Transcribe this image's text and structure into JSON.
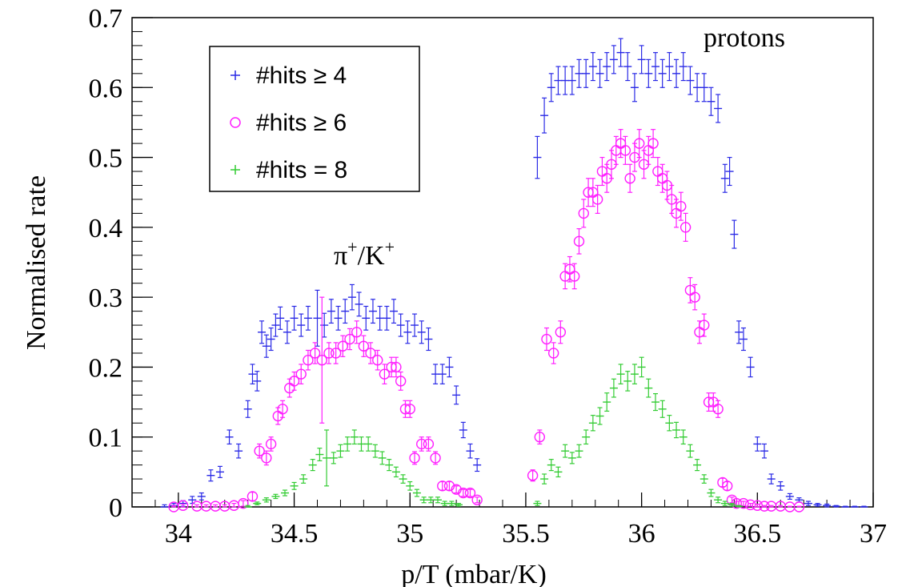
{
  "chart_data": {
    "type": "scatter",
    "xlabel": "p/T (mbar/K)",
    "ylabel": "Normalised rate",
    "xlim": [
      33.8,
      37.0
    ],
    "ylim": [
      0,
      0.7
    ],
    "xticks": [
      34,
      34.5,
      35,
      35.5,
      36,
      36.5,
      37
    ],
    "xtick_labels": [
      "34",
      "34.5",
      "35",
      "35.5",
      "36",
      "36.5",
      "37"
    ],
    "yticks": [
      0,
      0.1,
      0.2,
      0.3,
      0.4,
      0.5,
      0.6,
      0.7
    ],
    "ytick_labels": [
      "0",
      "0.1",
      "0.2",
      "0.3",
      "0.4",
      "0.5",
      "0.6",
      "0.7"
    ],
    "grid": false,
    "legend_position": "top-left",
    "annotations": [
      {
        "text": "π",
        "sup1": "+",
        "mid": "/K",
        "sup2": "+",
        "x": 34.72,
        "y": 0.36
      },
      {
        "text": "protons",
        "x": 36.28,
        "y": 0.665
      }
    ],
    "series": [
      {
        "name": "#hits ≥ 4",
        "marker": "plus",
        "color": "#2a2ae6",
        "x": [
          33.94,
          33.98,
          34.02,
          34.06,
          34.1,
          34.14,
          34.18,
          34.22,
          34.26,
          34.3,
          34.32,
          34.34,
          34.36,
          34.38,
          34.4,
          34.42,
          34.44,
          34.47,
          34.5,
          34.53,
          34.56,
          34.6,
          34.63,
          34.66,
          34.69,
          34.72,
          34.75,
          34.78,
          34.81,
          34.84,
          34.87,
          34.9,
          34.93,
          34.96,
          34.99,
          35.02,
          35.05,
          35.08,
          35.11,
          35.14,
          35.17,
          35.2,
          35.23,
          35.26,
          35.29,
          35.55,
          35.58,
          35.61,
          35.64,
          35.67,
          35.7,
          35.73,
          35.76,
          35.79,
          35.82,
          35.85,
          35.88,
          35.91,
          35.94,
          35.97,
          36.0,
          36.03,
          36.06,
          36.09,
          36.12,
          36.15,
          36.18,
          36.21,
          36.24,
          36.27,
          36.3,
          36.33,
          36.36,
          36.38,
          36.4,
          36.42,
          36.44,
          36.47,
          36.5,
          36.53,
          36.56,
          36.6,
          36.64,
          36.68,
          36.72,
          36.76,
          36.8,
          36.84,
          36.88,
          36.92,
          36.96
        ],
        "y": [
          0.0,
          0.002,
          0.005,
          0.01,
          0.015,
          0.045,
          0.05,
          0.1,
          0.08,
          0.14,
          0.19,
          0.18,
          0.25,
          0.23,
          0.24,
          0.26,
          0.27,
          0.25,
          0.27,
          0.26,
          0.27,
          0.27,
          0.26,
          0.28,
          0.27,
          0.28,
          0.3,
          0.29,
          0.27,
          0.28,
          0.27,
          0.27,
          0.28,
          0.26,
          0.25,
          0.26,
          0.25,
          0.24,
          0.19,
          0.19,
          0.2,
          0.16,
          0.11,
          0.08,
          0.06,
          0.5,
          0.56,
          0.6,
          0.61,
          0.61,
          0.61,
          0.62,
          0.62,
          0.63,
          0.62,
          0.63,
          0.64,
          0.65,
          0.63,
          0.6,
          0.64,
          0.62,
          0.63,
          0.62,
          0.63,
          0.62,
          0.63,
          0.61,
          0.6,
          0.6,
          0.58,
          0.57,
          0.47,
          0.48,
          0.39,
          0.25,
          0.24,
          0.2,
          0.09,
          0.08,
          0.04,
          0.03,
          0.015,
          0.01,
          0.005,
          0.003,
          0.002,
          0.001,
          0.0,
          0.0,
          0.0
        ],
        "yerr": [
          0.003,
          0.003,
          0.004,
          0.005,
          0.005,
          0.008,
          0.008,
          0.01,
          0.01,
          0.012,
          0.014,
          0.014,
          0.016,
          0.016,
          0.016,
          0.016,
          0.016,
          0.016,
          0.017,
          0.016,
          0.017,
          0.04,
          0.017,
          0.017,
          0.017,
          0.017,
          0.018,
          0.017,
          0.017,
          0.017,
          0.017,
          0.017,
          0.017,
          0.016,
          0.016,
          0.016,
          0.016,
          0.016,
          0.014,
          0.014,
          0.014,
          0.013,
          0.011,
          0.01,
          0.009,
          0.03,
          0.025,
          0.02,
          0.02,
          0.02,
          0.02,
          0.02,
          0.02,
          0.02,
          0.02,
          0.02,
          0.02,
          0.02,
          0.02,
          0.02,
          0.02,
          0.02,
          0.02,
          0.02,
          0.02,
          0.02,
          0.02,
          0.02,
          0.02,
          0.02,
          0.02,
          0.02,
          0.02,
          0.02,
          0.02,
          0.016,
          0.016,
          0.014,
          0.01,
          0.01,
          0.007,
          0.006,
          0.004,
          0.003,
          0.003,
          0.002,
          0.002,
          0.001,
          0.001,
          0.001,
          0.001
        ]
      },
      {
        "name": "#hits ≥ 6",
        "marker": "circle",
        "color": "#ff1fff",
        "x": [
          33.98,
          34.02,
          34.08,
          34.12,
          34.16,
          34.2,
          34.24,
          34.28,
          34.32,
          34.35,
          34.38,
          34.4,
          34.43,
          34.45,
          34.48,
          34.5,
          34.53,
          34.56,
          34.59,
          34.62,
          34.65,
          34.68,
          34.71,
          34.74,
          34.77,
          34.8,
          34.83,
          34.86,
          34.89,
          34.92,
          34.94,
          34.96,
          34.98,
          35.0,
          35.02,
          35.05,
          35.08,
          35.11,
          35.14,
          35.17,
          35.2,
          35.23,
          35.26,
          35.29,
          35.53,
          35.56,
          35.59,
          35.62,
          35.65,
          35.67,
          35.69,
          35.71,
          35.73,
          35.75,
          35.77,
          35.79,
          35.81,
          35.83,
          35.85,
          35.87,
          35.89,
          35.91,
          35.93,
          35.95,
          35.97,
          35.99,
          36.01,
          36.03,
          36.05,
          36.07,
          36.09,
          36.11,
          36.13,
          36.15,
          36.17,
          36.19,
          36.21,
          36.23,
          36.25,
          36.27,
          36.29,
          36.31,
          36.33,
          36.35,
          36.37,
          36.39,
          36.41,
          36.44,
          36.47,
          36.5,
          36.53,
          36.56,
          36.6,
          36.64,
          36.68
        ],
        "y": [
          0.0,
          0.002,
          0.001,
          0.001,
          0.001,
          0.001,
          0.002,
          0.005,
          0.015,
          0.08,
          0.07,
          0.09,
          0.13,
          0.14,
          0.17,
          0.18,
          0.19,
          0.21,
          0.22,
          0.21,
          0.22,
          0.22,
          0.23,
          0.24,
          0.25,
          0.23,
          0.22,
          0.21,
          0.19,
          0.2,
          0.2,
          0.18,
          0.14,
          0.14,
          0.07,
          0.09,
          0.09,
          0.07,
          0.03,
          0.03,
          0.025,
          0.02,
          0.02,
          0.01,
          0.045,
          0.1,
          0.24,
          0.22,
          0.25,
          0.33,
          0.34,
          0.33,
          0.38,
          0.42,
          0.45,
          0.45,
          0.44,
          0.48,
          0.47,
          0.49,
          0.51,
          0.52,
          0.51,
          0.47,
          0.5,
          0.52,
          0.49,
          0.51,
          0.52,
          0.48,
          0.47,
          0.46,
          0.44,
          0.42,
          0.43,
          0.4,
          0.31,
          0.3,
          0.25,
          0.26,
          0.15,
          0.15,
          0.14,
          0.035,
          0.03,
          0.01,
          0.005,
          0.005,
          0.003,
          0.002,
          0.001,
          0.001,
          0.001,
          0.0,
          0.0
        ],
        "yerr": [
          0.002,
          0.002,
          0.002,
          0.002,
          0.002,
          0.002,
          0.003,
          0.004,
          0.006,
          0.01,
          0.01,
          0.01,
          0.012,
          0.012,
          0.013,
          0.013,
          0.014,
          0.014,
          0.015,
          0.09,
          0.015,
          0.015,
          0.015,
          0.015,
          0.016,
          0.015,
          0.015,
          0.014,
          0.014,
          0.014,
          0.014,
          0.013,
          0.012,
          0.012,
          0.009,
          0.01,
          0.01,
          0.009,
          0.006,
          0.006,
          0.005,
          0.005,
          0.005,
          0.004,
          0.008,
          0.01,
          0.016,
          0.015,
          0.016,
          0.018,
          0.018,
          0.018,
          0.018,
          0.02,
          0.02,
          0.02,
          0.02,
          0.02,
          0.02,
          0.02,
          0.02,
          0.02,
          0.02,
          0.02,
          0.02,
          0.02,
          0.02,
          0.02,
          0.02,
          0.02,
          0.02,
          0.02,
          0.02,
          0.02,
          0.02,
          0.02,
          0.018,
          0.018,
          0.016,
          0.016,
          0.013,
          0.013,
          0.012,
          0.006,
          0.006,
          0.004,
          0.003,
          0.003,
          0.002,
          0.002,
          0.001,
          0.001,
          0.001,
          0.001,
          0.001
        ]
      },
      {
        "name": "#hits = 8",
        "marker": "plus",
        "color": "#33cc33",
        "x": [
          34.3,
          34.34,
          34.38,
          34.42,
          34.46,
          34.5,
          34.54,
          34.58,
          34.61,
          34.64,
          34.67,
          34.7,
          34.73,
          34.76,
          34.79,
          34.82,
          34.85,
          34.88,
          34.91,
          34.94,
          34.97,
          35.0,
          35.03,
          35.06,
          35.09,
          35.12,
          35.15,
          35.18,
          35.21,
          35.55,
          35.58,
          35.61,
          35.64,
          35.67,
          35.7,
          35.73,
          35.76,
          35.79,
          35.82,
          35.85,
          35.88,
          35.91,
          35.94,
          35.97,
          36.0,
          36.03,
          36.06,
          36.09,
          36.12,
          36.15,
          36.18,
          36.21,
          36.24,
          36.27,
          36.3,
          36.33,
          36.36,
          36.39,
          36.42
        ],
        "y": [
          0.0,
          0.005,
          0.01,
          0.015,
          0.02,
          0.03,
          0.04,
          0.06,
          0.075,
          0.07,
          0.07,
          0.08,
          0.09,
          0.1,
          0.09,
          0.09,
          0.08,
          0.07,
          0.06,
          0.05,
          0.04,
          0.03,
          0.02,
          0.01,
          0.01,
          0.01,
          0.005,
          0.005,
          0.003,
          0.005,
          0.04,
          0.06,
          0.05,
          0.08,
          0.07,
          0.08,
          0.1,
          0.12,
          0.13,
          0.15,
          0.17,
          0.19,
          0.18,
          0.19,
          0.2,
          0.17,
          0.15,
          0.14,
          0.12,
          0.11,
          0.1,
          0.08,
          0.06,
          0.04,
          0.02,
          0.01,
          0.005,
          0.003,
          0.001
        ],
        "yerr": [
          0.002,
          0.002,
          0.003,
          0.003,
          0.004,
          0.005,
          0.006,
          0.008,
          0.009,
          0.04,
          0.008,
          0.009,
          0.01,
          0.01,
          0.01,
          0.01,
          0.009,
          0.009,
          0.008,
          0.007,
          0.006,
          0.006,
          0.005,
          0.004,
          0.004,
          0.004,
          0.003,
          0.003,
          0.002,
          0.003,
          0.007,
          0.008,
          0.007,
          0.009,
          0.008,
          0.009,
          0.01,
          0.011,
          0.012,
          0.013,
          0.013,
          0.014,
          0.014,
          0.014,
          0.014,
          0.013,
          0.012,
          0.012,
          0.011,
          0.011,
          0.01,
          0.009,
          0.008,
          0.006,
          0.005,
          0.004,
          0.003,
          0.002,
          0.001
        ]
      }
    ]
  }
}
